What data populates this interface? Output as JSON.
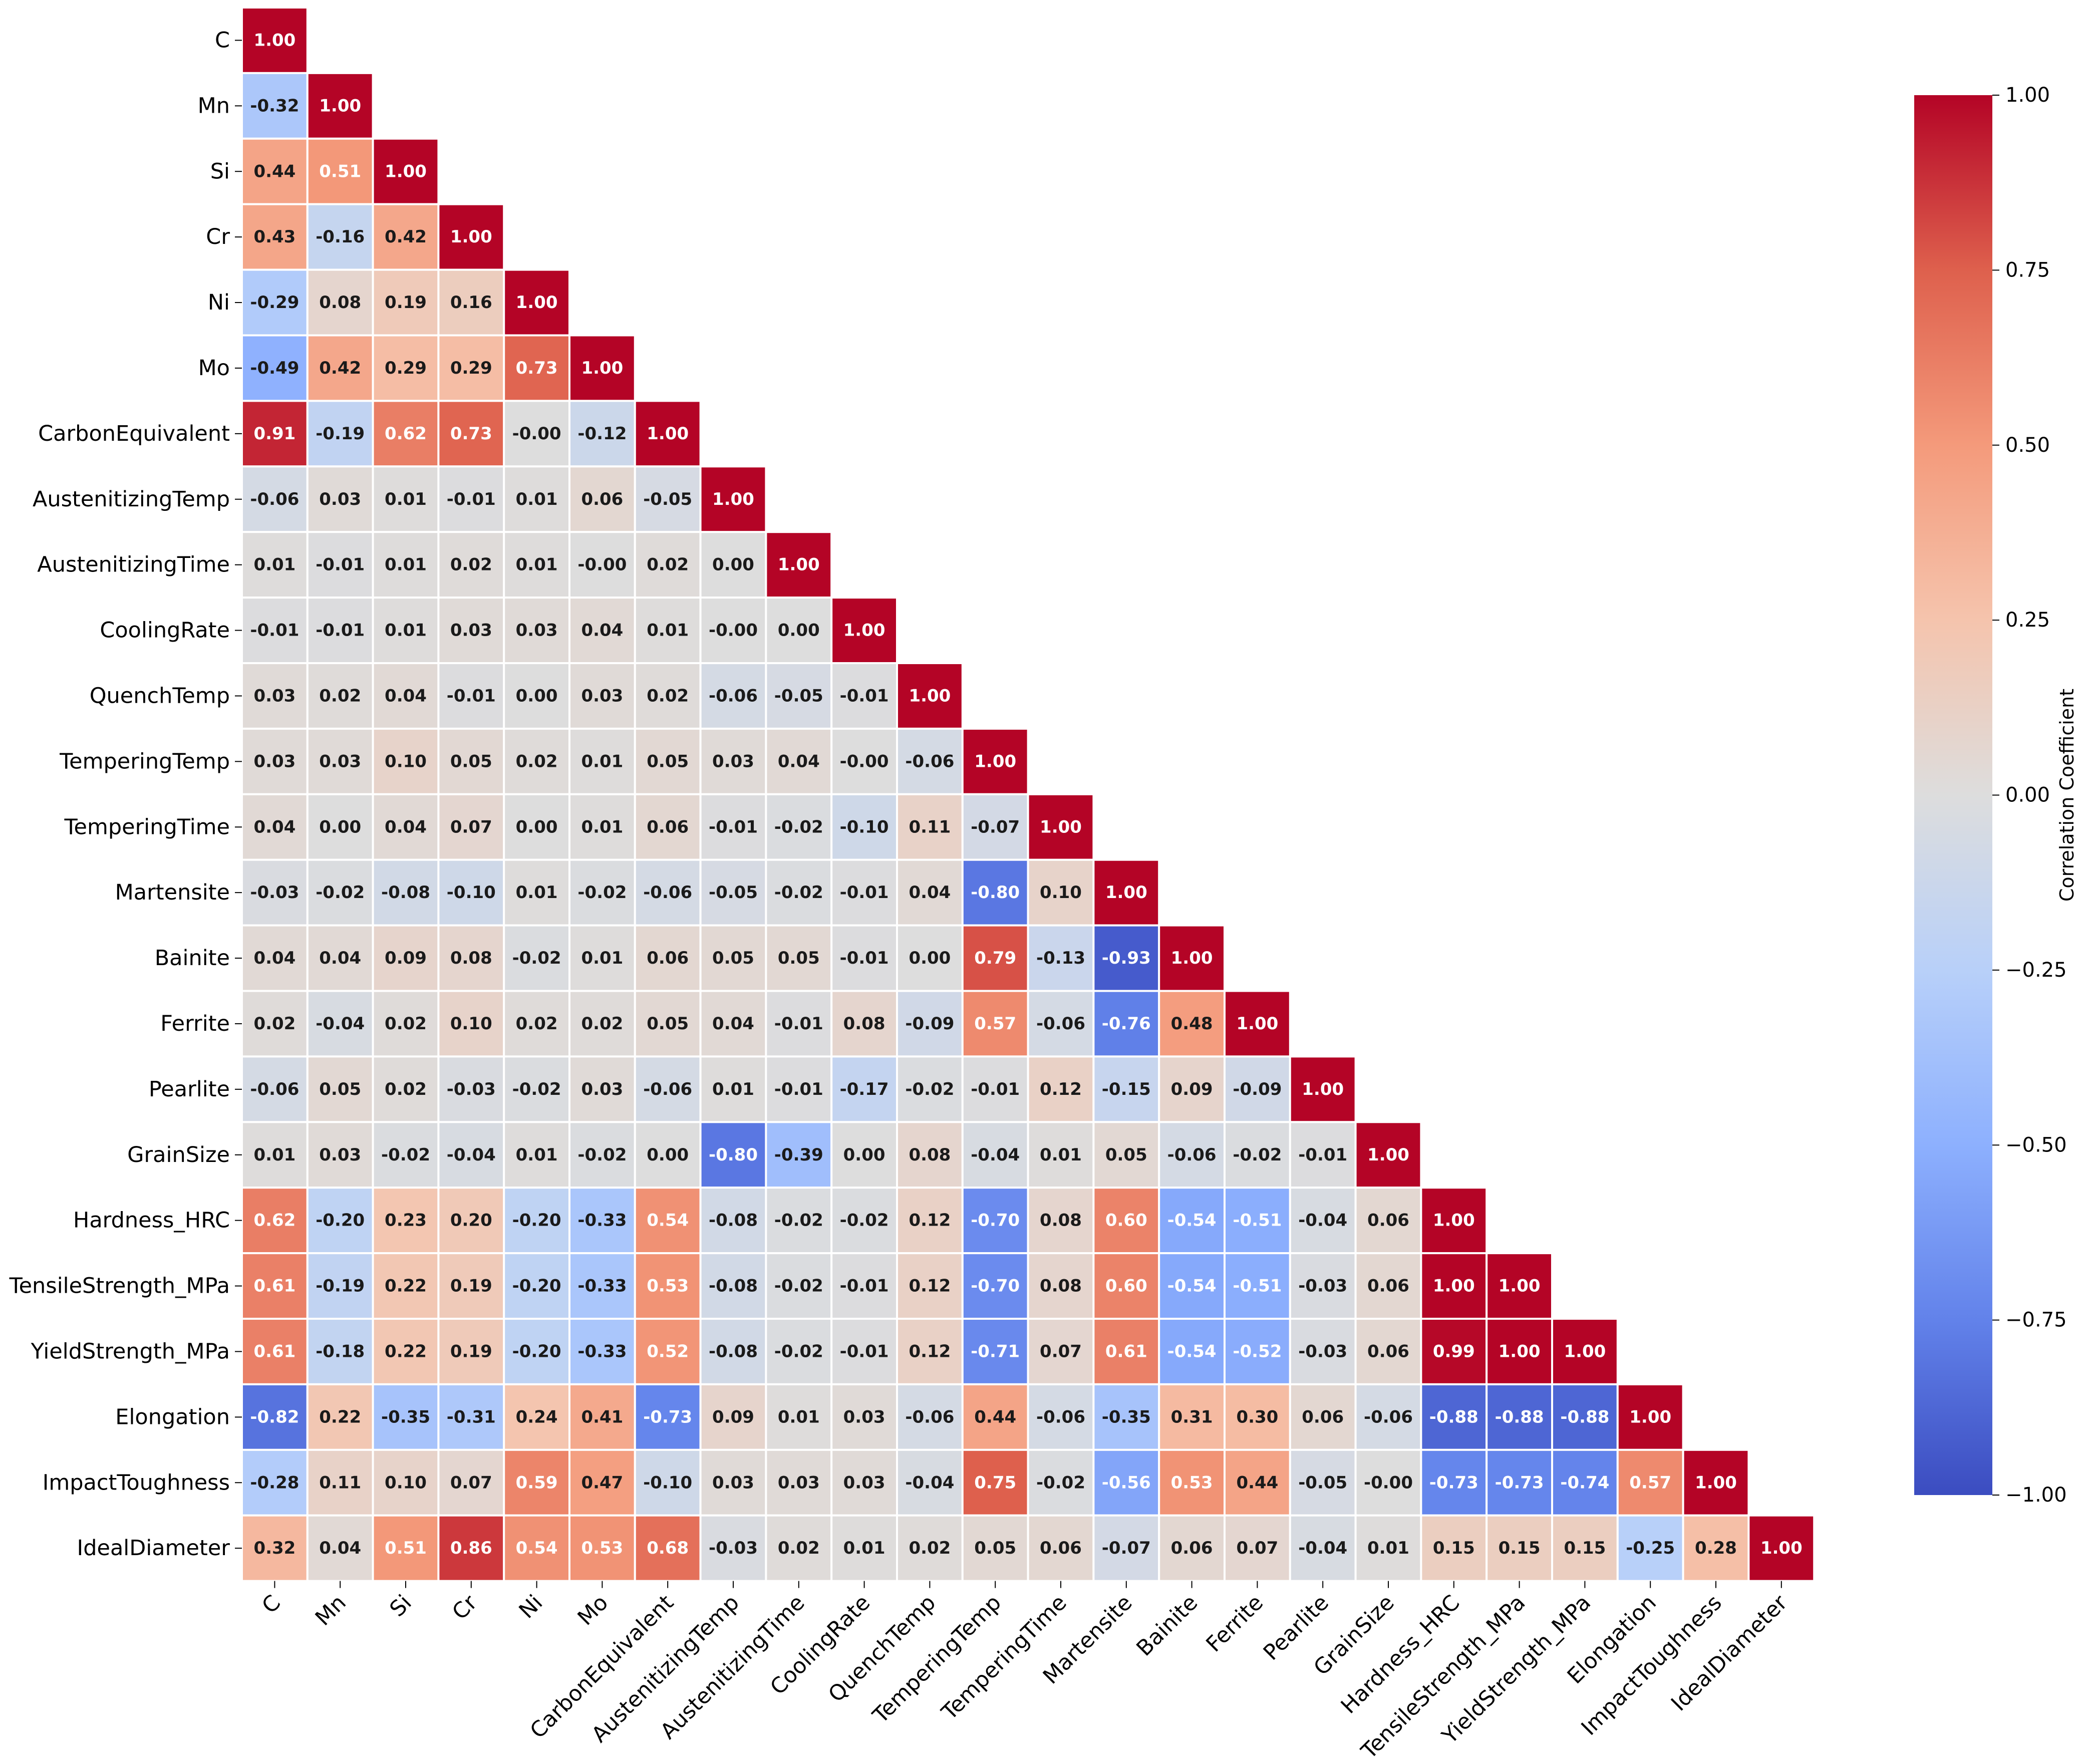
{
  "chart_data": {
    "type": "heatmap",
    "title": "",
    "variables": [
      "C",
      "Mn",
      "Si",
      "Cr",
      "Ni",
      "Mo",
      "CarbonEquivalent",
      "AustenitizingTemp",
      "AustenitizingTime",
      "CoolingRate",
      "QuenchTemp",
      "TemperingTemp",
      "TemperingTime",
      "Martensite",
      "Bainite",
      "Ferrite",
      "Pearlite",
      "GrainSize",
      "Hardness_HRC",
      "TensileStrength_MPa",
      "YieldStrength_MPa",
      "Elongation",
      "ImpactToughness",
      "IdealDiameter"
    ],
    "matrix_lower": [
      [
        1.0
      ],
      [
        -0.32,
        1.0
      ],
      [
        0.44,
        0.51,
        1.0
      ],
      [
        0.43,
        -0.16,
        0.42,
        1.0
      ],
      [
        -0.29,
        0.08,
        0.19,
        0.16,
        1.0
      ],
      [
        -0.49,
        0.42,
        0.29,
        0.29,
        0.73,
        1.0
      ],
      [
        0.91,
        -0.19,
        0.62,
        0.73,
        -0.0,
        -0.12,
        1.0
      ],
      [
        -0.06,
        0.03,
        0.01,
        -0.01,
        0.01,
        0.06,
        -0.05,
        1.0
      ],
      [
        0.01,
        -0.01,
        0.01,
        0.02,
        0.01,
        -0.0,
        0.02,
        0.0,
        1.0
      ],
      [
        -0.01,
        -0.01,
        0.01,
        0.03,
        0.03,
        0.04,
        0.01,
        -0.0,
        0.0,
        1.0
      ],
      [
        0.03,
        0.02,
        0.04,
        -0.01,
        0.0,
        0.03,
        0.02,
        -0.06,
        -0.05,
        -0.01,
        1.0
      ],
      [
        0.03,
        0.03,
        0.1,
        0.05,
        0.02,
        0.01,
        0.05,
        0.03,
        0.04,
        -0.0,
        -0.06,
        1.0
      ],
      [
        0.04,
        0.0,
        0.04,
        0.07,
        0.0,
        0.01,
        0.06,
        -0.01,
        -0.02,
        -0.1,
        0.11,
        -0.07,
        1.0
      ],
      [
        -0.03,
        -0.02,
        -0.08,
        -0.1,
        0.01,
        -0.02,
        -0.06,
        -0.05,
        -0.02,
        -0.01,
        0.04,
        -0.8,
        0.1,
        1.0
      ],
      [
        0.04,
        0.04,
        0.09,
        0.08,
        -0.02,
        0.01,
        0.06,
        0.05,
        0.05,
        -0.01,
        0.0,
        0.79,
        -0.13,
        -0.93,
        1.0
      ],
      [
        0.02,
        -0.04,
        0.02,
        0.1,
        0.02,
        0.02,
        0.05,
        0.04,
        -0.01,
        0.08,
        -0.09,
        0.57,
        -0.06,
        -0.76,
        0.48,
        1.0
      ],
      [
        -0.06,
        0.05,
        0.02,
        -0.03,
        -0.02,
        0.03,
        -0.06,
        0.01,
        -0.01,
        -0.17,
        -0.02,
        -0.01,
        0.12,
        -0.15,
        0.09,
        -0.09,
        1.0
      ],
      [
        0.01,
        0.03,
        -0.02,
        -0.04,
        0.01,
        -0.02,
        0.0,
        -0.8,
        -0.39,
        0.0,
        0.08,
        -0.04,
        0.01,
        0.05,
        -0.06,
        -0.02,
        -0.01,
        1.0
      ],
      [
        0.62,
        -0.2,
        0.23,
        0.2,
        -0.2,
        -0.33,
        0.54,
        -0.08,
        -0.02,
        -0.02,
        0.12,
        -0.7,
        0.08,
        0.6,
        -0.54,
        -0.51,
        -0.04,
        0.06,
        1.0
      ],
      [
        0.61,
        -0.19,
        0.22,
        0.19,
        -0.2,
        -0.33,
        0.53,
        -0.08,
        -0.02,
        -0.01,
        0.12,
        -0.7,
        0.08,
        0.6,
        -0.54,
        -0.51,
        -0.03,
        0.06,
        1.0,
        1.0
      ],
      [
        0.61,
        -0.18,
        0.22,
        0.19,
        -0.2,
        -0.33,
        0.52,
        -0.08,
        -0.02,
        -0.01,
        0.12,
        -0.71,
        0.07,
        0.61,
        -0.54,
        -0.52,
        -0.03,
        0.06,
        0.99,
        1.0,
        1.0
      ],
      [
        -0.82,
        0.22,
        -0.35,
        -0.31,
        0.24,
        0.41,
        -0.73,
        0.09,
        0.01,
        0.03,
        -0.06,
        0.44,
        -0.06,
        -0.35,
        0.31,
        0.3,
        0.06,
        -0.06,
        -0.88,
        -0.88,
        -0.88,
        1.0
      ],
      [
        -0.28,
        0.11,
        0.1,
        0.07,
        0.59,
        0.47,
        -0.1,
        0.03,
        0.03,
        0.03,
        -0.04,
        0.75,
        -0.02,
        -0.56,
        0.53,
        0.44,
        -0.05,
        -0.0,
        -0.73,
        -0.73,
        -0.74,
        0.57,
        1.0
      ],
      [
        0.32,
        0.04,
        0.51,
        0.86,
        0.54,
        0.53,
        0.68,
        -0.03,
        0.02,
        0.01,
        0.02,
        0.05,
        0.06,
        -0.07,
        0.06,
        0.07,
        -0.04,
        0.01,
        0.15,
        0.15,
        0.15,
        -0.25,
        0.28,
        1.0
      ]
    ],
    "colormap": "coolwarm",
    "vmin": -1.0,
    "vmax": 1.0,
    "value_format": "2 decimals",
    "colorbar": {
      "label": "Correlation Coefficient",
      "ticks": [
        1.0,
        0.75,
        0.5,
        0.25,
        0.0,
        -0.25,
        -0.5,
        -0.75,
        -1.0
      ],
      "tick_labels": [
        "1.00",
        "0.75",
        "0.50",
        "0.25",
        "0.00",
        "−0.25",
        "−0.50",
        "−0.75",
        "−1.00"
      ],
      "placement": "right"
    },
    "xlabel": "",
    "ylabel": ""
  },
  "colors": {
    "cool_end": "#3b4cc0",
    "mid": "#dddddd",
    "warm_end": "#b40426",
    "cell_border": "#ffffff",
    "text_on_light": "#1a1a1a",
    "text_on_dark": "#ffffff"
  }
}
